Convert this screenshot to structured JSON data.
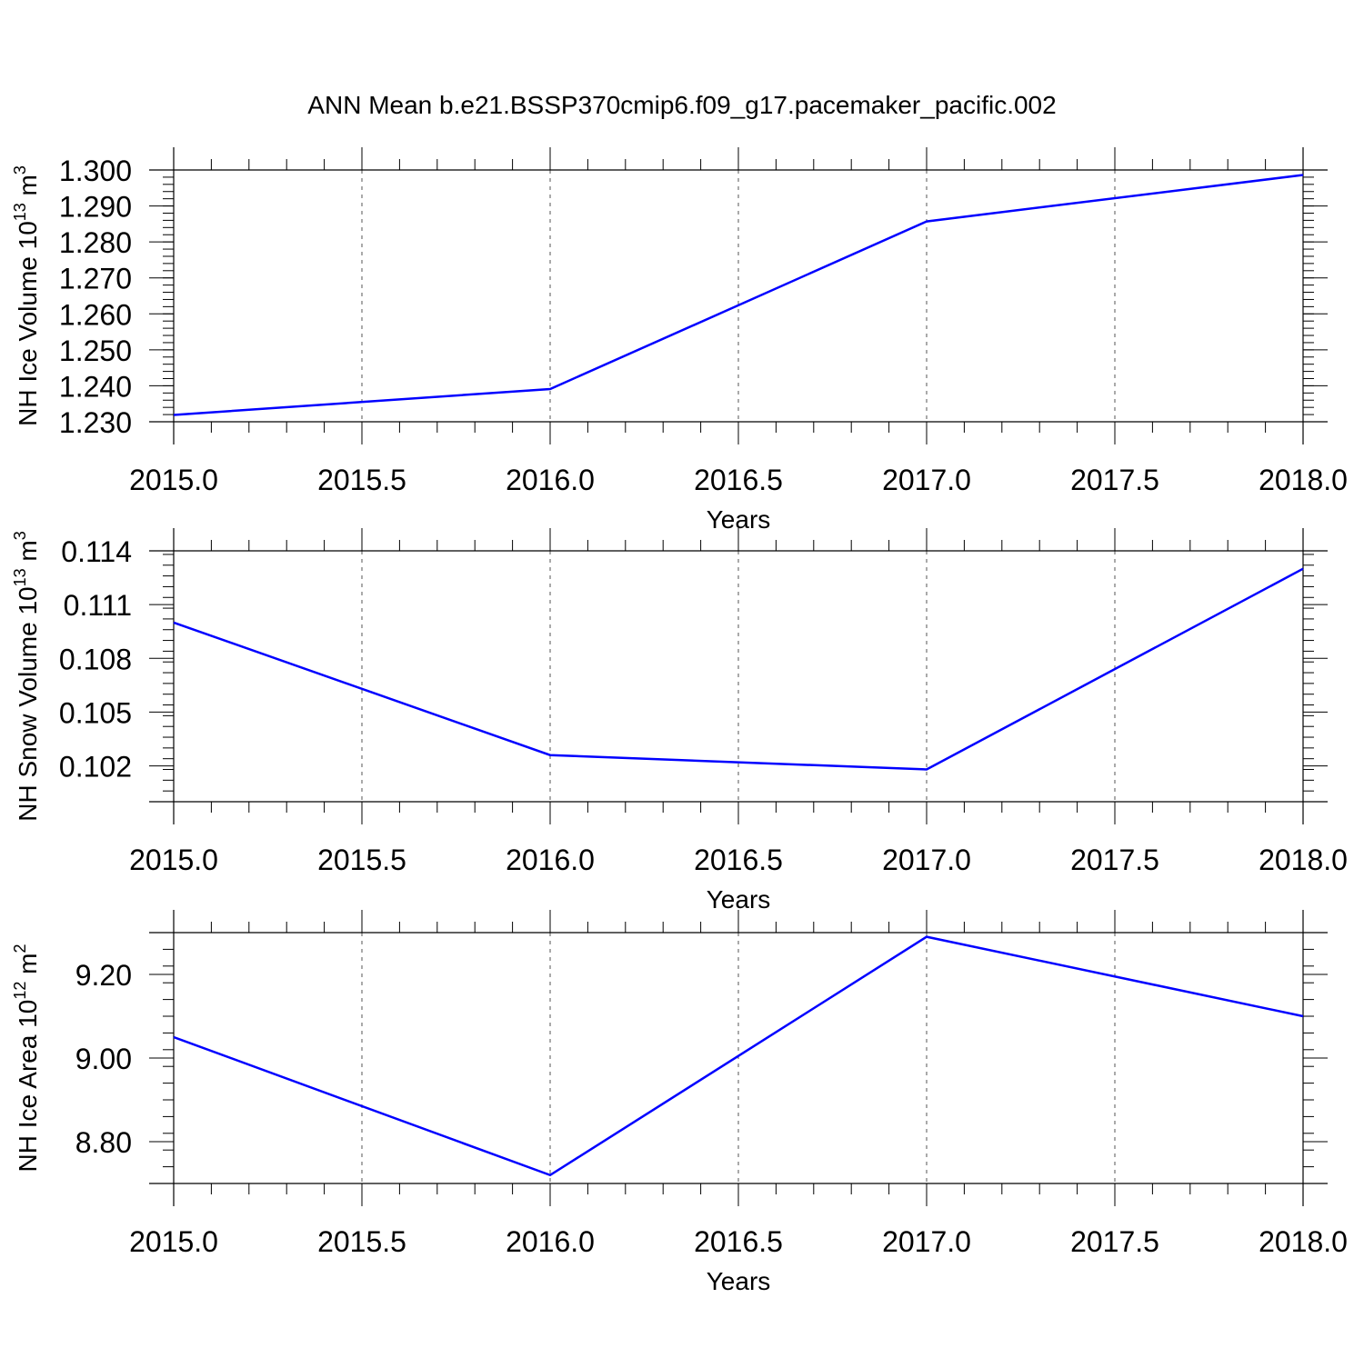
{
  "figure": {
    "title": "ANN Mean b.e21.BSSP370cmip6.f09_g17.pacemaker_pacific.002"
  },
  "chart_data": [
    {
      "type": "line",
      "title": "",
      "xlabel": "Years",
      "ylabel_parts": {
        "base": "NH Ice Volume 10",
        "exp": "13",
        "unit": " m",
        "unit_exp": "3"
      },
      "xlim": [
        2015.0,
        2018.0
      ],
      "ylim": [
        1.23,
        1.3
      ],
      "x_ticks": [
        "2015.0",
        "2015.5",
        "2016.0",
        "2016.5",
        "2017.0",
        "2017.5",
        "2018.0"
      ],
      "y_ticks": [
        1.23,
        1.24,
        1.25,
        1.26,
        1.27,
        1.28,
        1.29,
        1.3
      ],
      "y_tick_labels": [
        "1.230",
        "1.240",
        "1.250",
        "1.260",
        "1.270",
        "1.280",
        "1.290",
        "1.300"
      ],
      "grid": "vertical dashed at major x ticks",
      "series": [
        {
          "color": "#0000ff",
          "x": [
            2015,
            2016,
            2017,
            2018
          ],
          "y": [
            1.2319,
            1.2391,
            1.2857,
            1.2986
          ]
        }
      ]
    },
    {
      "type": "line",
      "title": "",
      "xlabel": "Years",
      "ylabel_parts": {
        "base": "NH Snow Volume 10",
        "exp": "13",
        "unit": " m",
        "unit_exp": "3"
      },
      "xlim": [
        2015.0,
        2018.0
      ],
      "ylim": [
        0.1,
        0.114
      ],
      "x_ticks": [
        "2015.0",
        "2015.5",
        "2016.0",
        "2016.5",
        "2017.0",
        "2017.5",
        "2018.0"
      ],
      "y_ticks": [
        0.102,
        0.105,
        0.108,
        0.111,
        0.114
      ],
      "y_tick_labels": [
        "0.102",
        "0.105",
        "0.108",
        "0.111",
        "0.114"
      ],
      "grid": "vertical dashed at major x ticks",
      "series": [
        {
          "color": "#0000ff",
          "x": [
            2015,
            2016,
            2017,
            2018
          ],
          "y": [
            0.11,
            0.1026,
            0.1018,
            0.113
          ]
        }
      ]
    },
    {
      "type": "line",
      "title": "",
      "xlabel": "Years",
      "ylabel_parts": {
        "base": "NH Ice Area 10",
        "exp": "12",
        "unit": " m",
        "unit_exp": "2"
      },
      "xlim": [
        2015.0,
        2018.0
      ],
      "ylim": [
        8.7,
        9.3
      ],
      "x_ticks": [
        "2015.0",
        "2015.5",
        "2016.0",
        "2016.5",
        "2017.0",
        "2017.5",
        "2018.0"
      ],
      "y_ticks": [
        8.8,
        9.0,
        9.2
      ],
      "y_tick_labels": [
        "8.80",
        "9.00",
        "9.20"
      ],
      "grid": "vertical dashed at major x ticks",
      "series": [
        {
          "color": "#0000ff",
          "x": [
            2015,
            2016,
            2017,
            2018
          ],
          "y": [
            9.05,
            8.72,
            9.29,
            9.1
          ]
        }
      ]
    }
  ]
}
